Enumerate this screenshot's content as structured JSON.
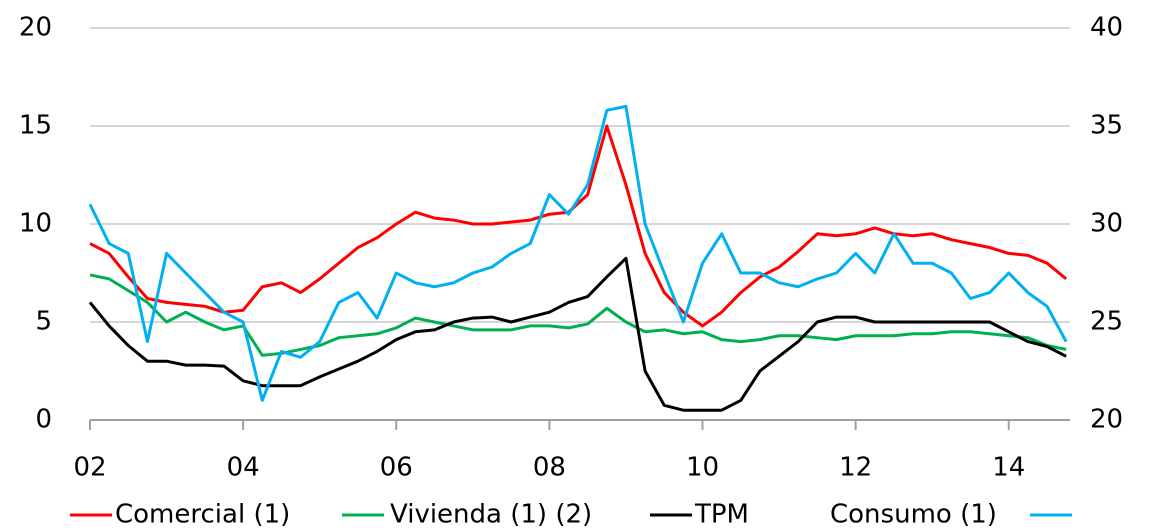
{
  "chart_data": {
    "type": "line",
    "x": [
      2002,
      2002.25,
      2002.5,
      2002.75,
      2003,
      2003.25,
      2003.5,
      2003.75,
      2004,
      2004.25,
      2004.5,
      2004.75,
      2005,
      2005.25,
      2005.5,
      2005.75,
      2006,
      2006.25,
      2006.5,
      2006.75,
      2007,
      2007.25,
      2007.5,
      2007.75,
      2008,
      2008.25,
      2008.5,
      2008.75,
      2009,
      2009.25,
      2009.5,
      2009.75,
      2010,
      2010.25,
      2010.5,
      2010.75,
      2011,
      2011.25,
      2011.5,
      2011.75,
      2012,
      2012.25,
      2012.5,
      2012.75,
      2013,
      2013.25,
      2013.5,
      2013.75,
      2014,
      2014.25,
      2014.5,
      2014.75
    ],
    "series": [
      {
        "name": "Comercial (1)",
        "color": "#ff0000",
        "values": [
          9,
          8.5,
          7.3,
          6.2,
          6.0,
          5.9,
          5.8,
          5.5,
          5.6,
          6.8,
          7.0,
          6.5,
          7.2,
          8.0,
          8.8,
          9.3,
          10.0,
          10.6,
          10.3,
          10.2,
          10.0,
          10.0,
          10.1,
          10.2,
          10.5,
          10.6,
          11.5,
          15.0,
          12.0,
          8.5,
          6.5,
          5.5,
          4.8,
          5.5,
          6.5,
          7.3,
          7.8,
          8.6,
          9.5,
          9.4,
          9.5,
          9.8,
          9.5,
          9.4,
          9.5,
          9.2,
          9.0,
          8.8,
          8.5,
          8.4,
          8.0,
          7.2
        ]
      },
      {
        "name": "Vivienda (1) (2)",
        "color": "#00b050",
        "values": [
          7.4,
          7.2,
          6.6,
          6.0,
          5.0,
          5.5,
          5.0,
          4.6,
          4.8,
          3.3,
          3.4,
          3.6,
          3.8,
          4.2,
          4.3,
          4.4,
          4.7,
          5.2,
          5.0,
          4.8,
          4.6,
          4.6,
          4.6,
          4.8,
          4.8,
          4.7,
          4.9,
          5.7,
          5.0,
          4.5,
          4.6,
          4.4,
          4.5,
          4.1,
          4.0,
          4.1,
          4.3,
          4.3,
          4.2,
          4.1,
          4.3,
          4.3,
          4.3,
          4.4,
          4.4,
          4.5,
          4.5,
          4.4,
          4.3,
          4.2,
          3.8,
          3.6
        ]
      },
      {
        "name": "TPM",
        "color": "#000000",
        "values": [
          6.0,
          4.8,
          3.8,
          3.0,
          3.0,
          2.8,
          2.8,
          2.75,
          2.0,
          1.75,
          1.75,
          1.75,
          2.2,
          2.6,
          3.0,
          3.5,
          4.1,
          4.5,
          4.6,
          5.0,
          5.2,
          5.25,
          5.0,
          5.25,
          5.5,
          6.0,
          6.3,
          7.3,
          8.25,
          2.5,
          0.75,
          0.5,
          0.5,
          0.5,
          1.0,
          2.5,
          3.25,
          4.0,
          5.0,
          5.25,
          5.25,
          5.0,
          5.0,
          5.0,
          5.0,
          5.0,
          5.0,
          5.0,
          4.5,
          4.0,
          3.75,
          3.25
        ]
      },
      {
        "name": "Consumo (1)",
        "color": "#00b0f0",
        "axis": "y2",
        "values": [
          31,
          29,
          28.5,
          24,
          28.5,
          27.5,
          26.5,
          25.5,
          25,
          21,
          23.5,
          23.2,
          24,
          26,
          26.5,
          25.2,
          27.5,
          27,
          26.8,
          27,
          27.5,
          27.8,
          28.5,
          29,
          31.5,
          30.5,
          32,
          35.8,
          36,
          30,
          27.5,
          25,
          28,
          29.5,
          27.5,
          27.5,
          27,
          26.8,
          27.2,
          27.5,
          28.5,
          27.5,
          29.5,
          28,
          28,
          27.5,
          26.2,
          26.5,
          27.5,
          26.5,
          25.8,
          24
        ]
      }
    ],
    "xlim": [
      2002,
      2014.8
    ],
    "xticks": [
      {
        "value": 2002,
        "label": "02"
      },
      {
        "value": 2004,
        "label": "04"
      },
      {
        "value": 2006,
        "label": "06"
      },
      {
        "value": 2008,
        "label": "08"
      },
      {
        "value": 2010,
        "label": "10"
      },
      {
        "value": 2012,
        "label": "12"
      },
      {
        "value": 2014,
        "label": "14"
      }
    ],
    "ylim": [
      0,
      20
    ],
    "yticks": [
      0,
      5,
      10,
      15,
      20
    ],
    "y2lim": [
      20,
      40
    ],
    "y2ticks": [
      20,
      25,
      30,
      35,
      40
    ],
    "grid": true
  }
}
